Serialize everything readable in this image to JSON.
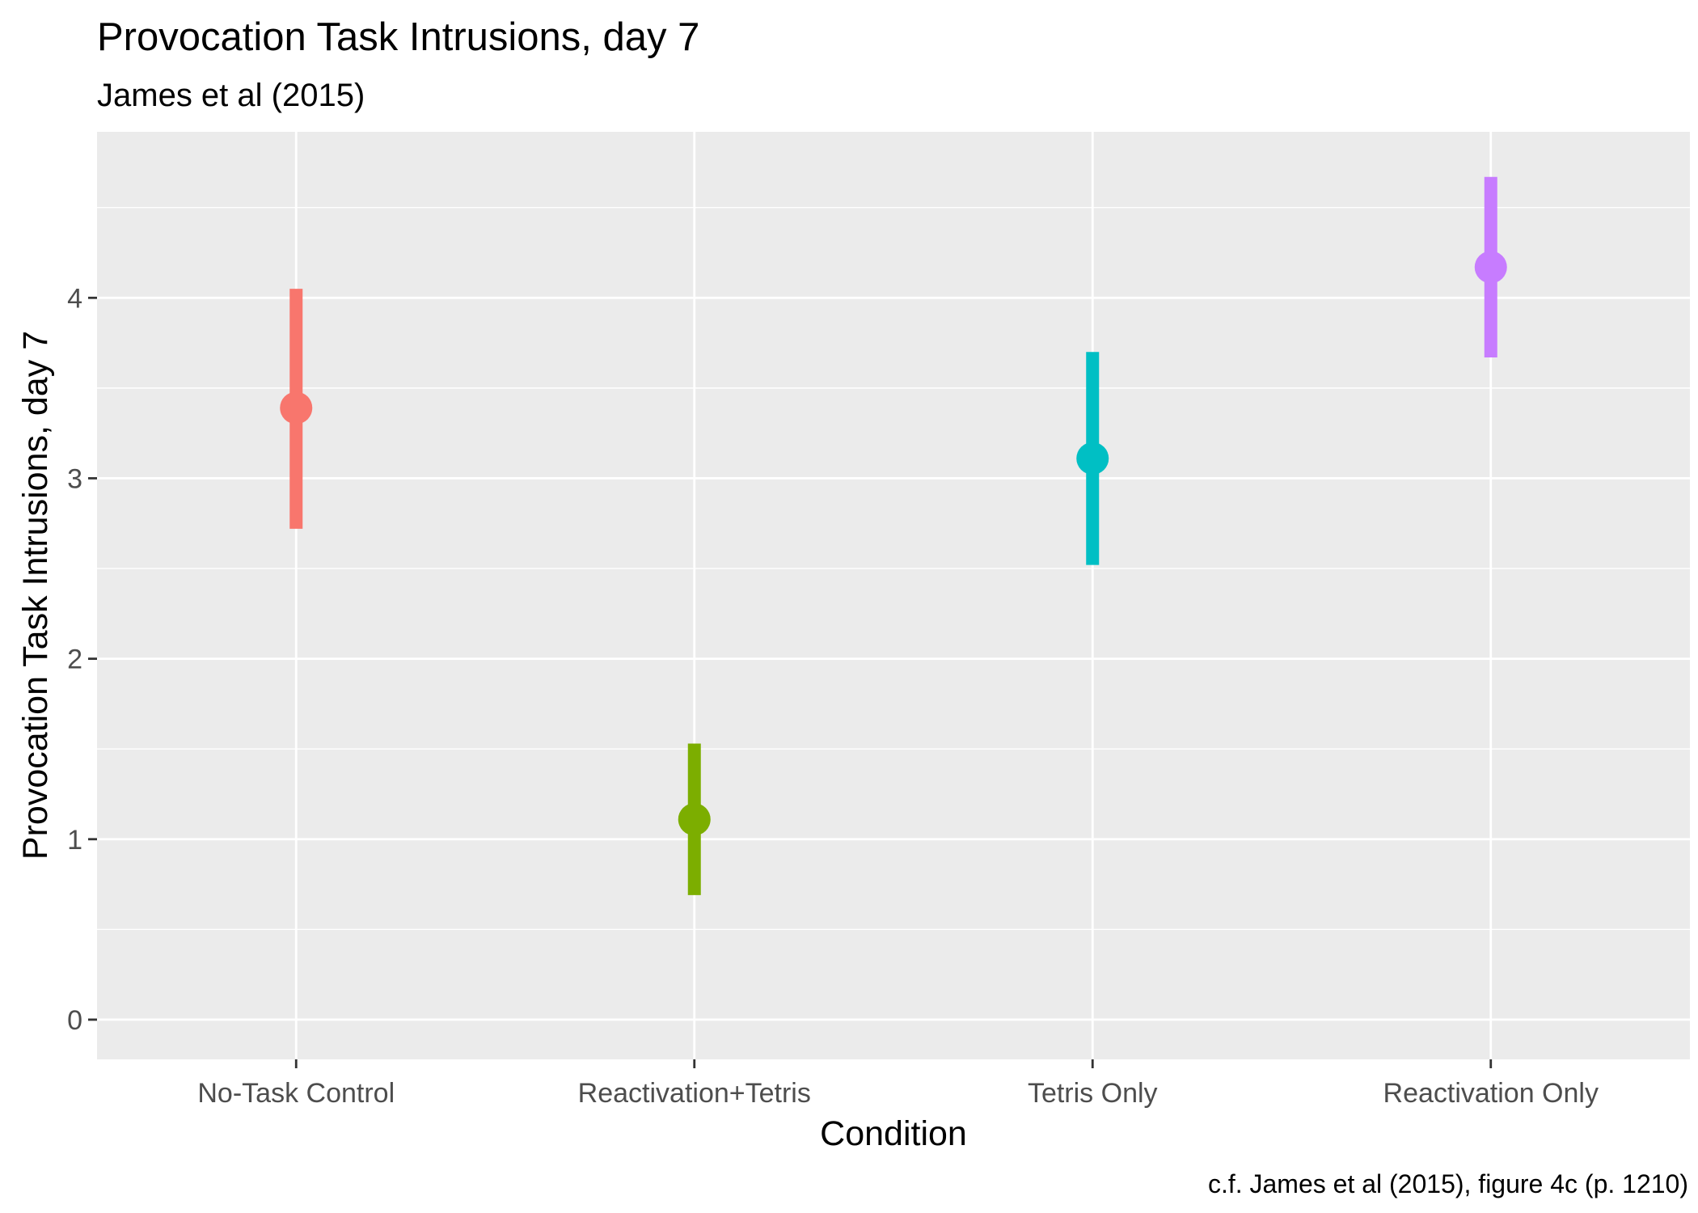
{
  "chart_data": {
    "type": "pointrange",
    "title": "Provocation Task Intrusions, day 7",
    "subtitle": "James et al (2015)",
    "caption": "c.f. James et al (2015), figure 4c (p. 1210)",
    "xlabel": "Condition",
    "ylabel": "Provocation Task Intrusions, day 7",
    "categories": [
      "No-Task Control",
      "Reactivation+Tetris",
      "Tetris Only",
      "Reactivation Only"
    ],
    "points": [
      {
        "condition": "No-Task Control",
        "mean": 3.39,
        "lower": 2.72,
        "upper": 4.05,
        "color": "#F8766D"
      },
      {
        "condition": "Reactivation+Tetris",
        "mean": 1.11,
        "lower": 0.69,
        "upper": 1.53,
        "color": "#7CAE00"
      },
      {
        "condition": "Tetris Only",
        "mean": 3.11,
        "lower": 2.52,
        "upper": 3.7,
        "color": "#00BFC4"
      },
      {
        "condition": "Reactivation Only",
        "mean": 4.17,
        "lower": 3.67,
        "upper": 4.67,
        "color": "#C77CFF"
      }
    ],
    "yticks": [
      0,
      1,
      2,
      3,
      4
    ],
    "ylim": [
      -0.22,
      4.92
    ],
    "grid": true,
    "legend": "none",
    "panel_color": "#EBEBEB",
    "grid_color": "#FFFFFF"
  }
}
